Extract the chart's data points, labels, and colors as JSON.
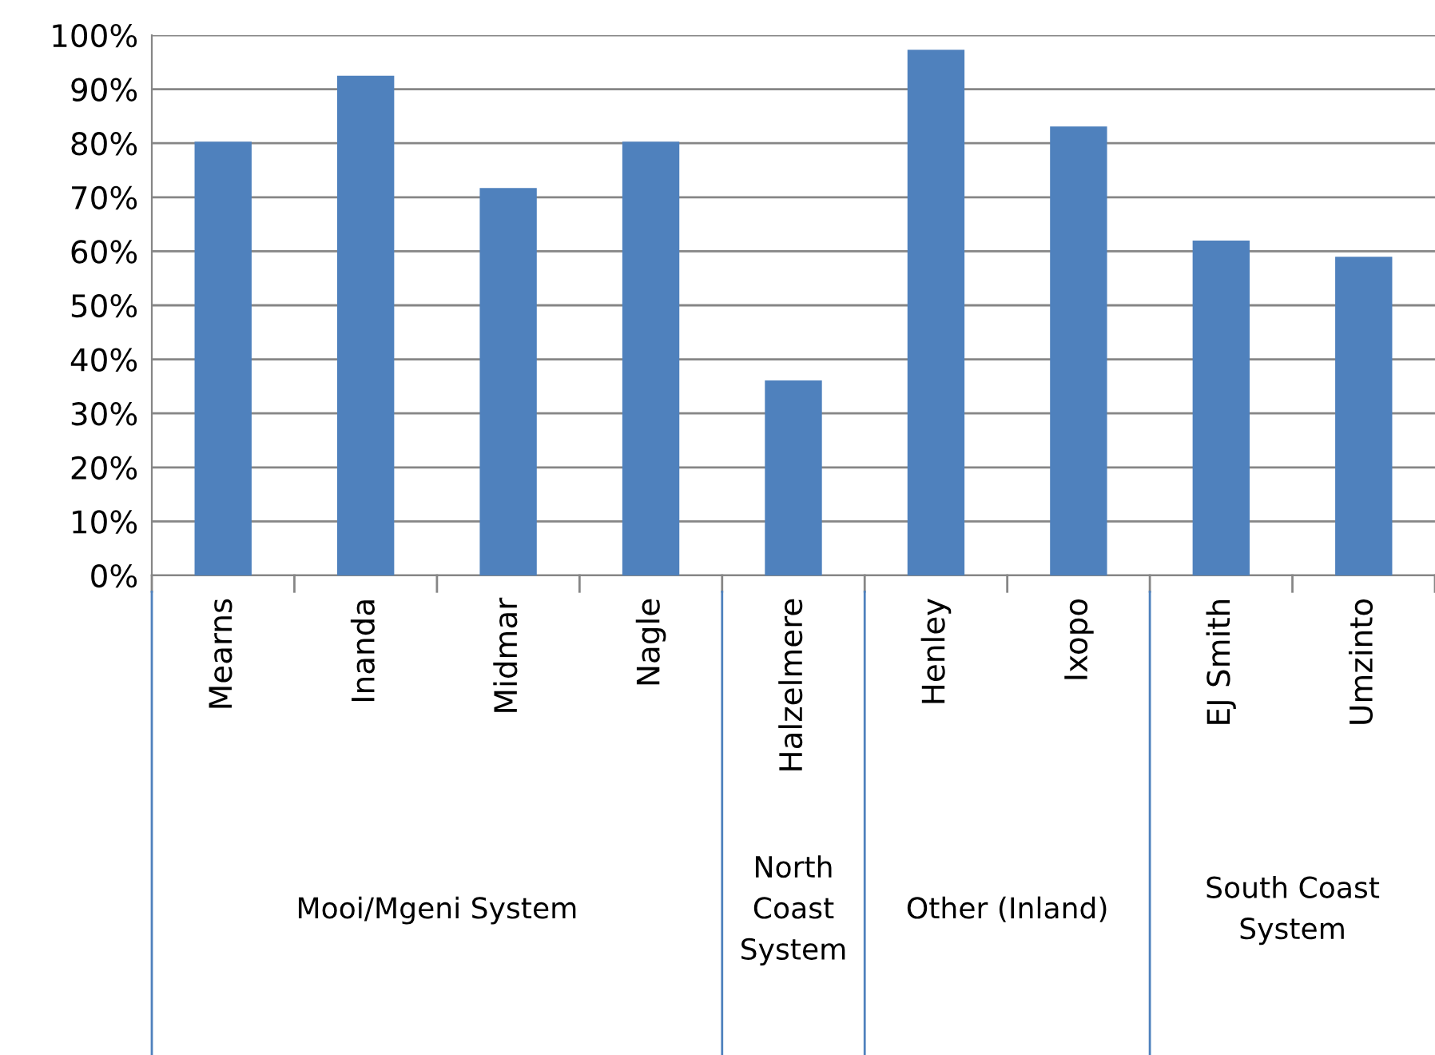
{
  "chart_data": {
    "type": "bar",
    "categories": [
      "Mearns",
      "Inanda",
      "Midmar",
      "Nagle",
      "Halzelmere",
      "Henley",
      "Ixopo",
      "EJ Smith",
      "Umzinto"
    ],
    "values": [
      80.3,
      92.5,
      71.7,
      80.3,
      36.1,
      97.3,
      83.1,
      62.0,
      59.0
    ],
    "color": "#4f81bd",
    "ylim": [
      0,
      100
    ],
    "yticks": [
      {
        "value": 0,
        "label": "0%"
      },
      {
        "value": 10,
        "label": "10%"
      },
      {
        "value": 20,
        "label": "20%"
      },
      {
        "value": 30,
        "label": "30%"
      },
      {
        "value": 40,
        "label": "40%"
      },
      {
        "value": 50,
        "label": "50%"
      },
      {
        "value": 60,
        "label": "60%"
      },
      {
        "value": 70,
        "label": "70%"
      },
      {
        "value": 80,
        "label": "80%"
      },
      {
        "value": 90,
        "label": "90%"
      },
      {
        "value": 100,
        "label": "100%"
      }
    ],
    "grid": "y",
    "annotations": [
      "Mooi/Mgeni System",
      "North\nCoast\nSystem",
      "Other (Inland)",
      "South Coast\nSystem"
    ]
  }
}
